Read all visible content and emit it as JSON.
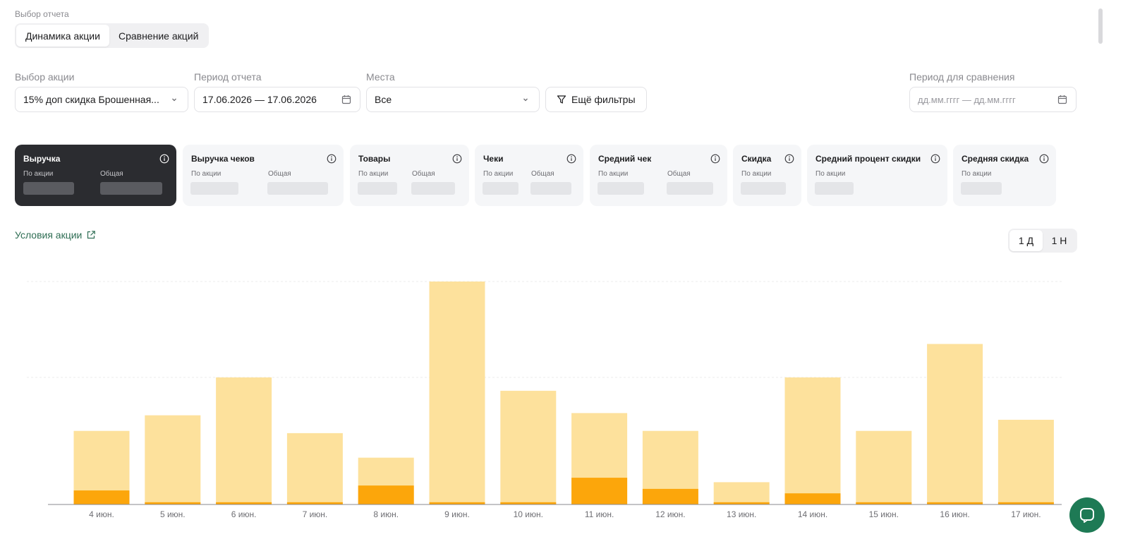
{
  "report_select": {
    "label": "Выбор отчета",
    "options": [
      "Динамика акции",
      "Сравнение акций"
    ],
    "active_index": 0
  },
  "filters": {
    "promo": {
      "label": "Выбор акции",
      "value": "15% доп скидка Брошенная..."
    },
    "period": {
      "label": "Период отчета",
      "value": "17.06.2026 — 17.06.2026"
    },
    "places": {
      "label": "Места",
      "value": "Все"
    },
    "more_filters": "Ещё фильтры",
    "compare_period": {
      "label": "Период для сравнения",
      "placeholder": "дд.мм.гггг — дд.мм.гггг"
    }
  },
  "metric_cards": [
    {
      "title": "Выручка",
      "subs": [
        "По акции",
        "Общая"
      ],
      "active": true
    },
    {
      "title": "Выручка чеков",
      "subs": [
        "По акции",
        "Общая"
      ]
    },
    {
      "title": "Товары",
      "subs": [
        "По акции",
        "Общая"
      ]
    },
    {
      "title": "Чеки",
      "subs": [
        "По акции",
        "Общая"
      ]
    },
    {
      "title": "Средний чек",
      "subs": [
        "По акции",
        "Общая"
      ]
    },
    {
      "title": "Скидка",
      "subs": [
        "По акции"
      ]
    },
    {
      "title": "Средний процент скидки",
      "subs": [
        "По акции"
      ]
    },
    {
      "title": "Средняя скидка",
      "subs": [
        "По акции"
      ]
    }
  ],
  "terms_link": "Условия акции",
  "granularity": {
    "options": [
      "1 Д",
      "1 Н"
    ],
    "active_index": 0
  },
  "colors": {
    "total": "#fde19c",
    "promo": "#fca60b",
    "dark_card": "#2b2c30",
    "link": "#2f6e54",
    "chat": "#1e7a55"
  },
  "chart_data": {
    "type": "bar",
    "categories": [
      "4 июн.",
      "5 июн.",
      "6 июн.",
      "7 июн.",
      "8 июн.",
      "9 июн.",
      "10 июн.",
      "11 июн.",
      "12 июн.",
      "13 июн.",
      "14 июн.",
      "15 июн.",
      "16 июн.",
      "17 июн."
    ],
    "series": [
      {
        "values": [
          33,
          40,
          57,
          32,
          21,
          100,
          51,
          41,
          33,
          10,
          57,
          33,
          72,
          38
        ]
      },
      {
        "values": [
          6.3,
          1,
          1,
          1,
          8.5,
          1,
          1,
          12,
          7,
          1,
          5,
          1,
          1,
          1
        ]
      }
    ],
    "ylim": [
      0,
      100
    ],
    "grid": true,
    "legend": "none"
  }
}
